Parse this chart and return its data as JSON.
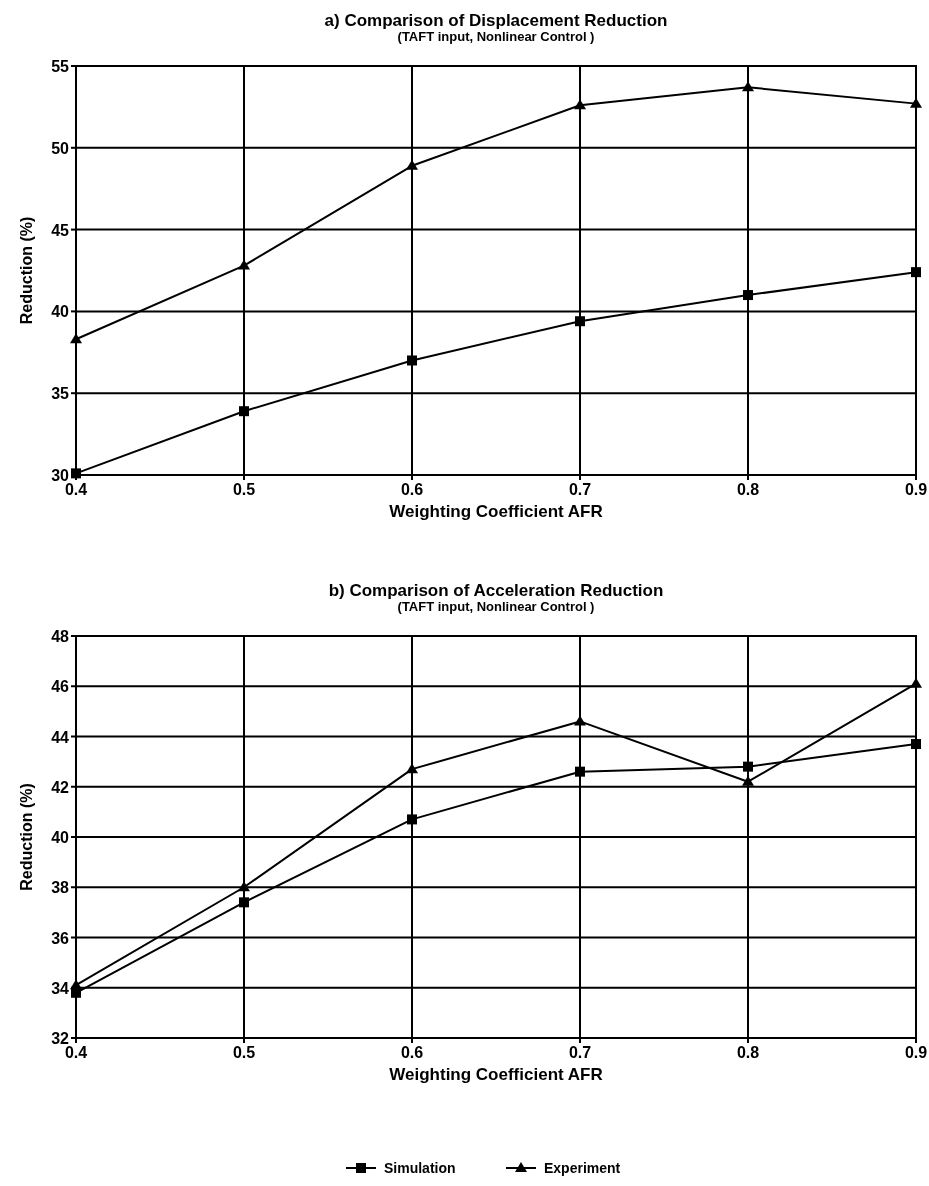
{
  "chart_data": [
    {
      "type": "line",
      "title": "a) Comparison of Displacement Reduction",
      "subtitle": "(TAFT input, Nonlinear Control   )",
      "xlabel": "Weighting Coefficient AFR",
      "ylabel": "Reduction (%)",
      "x": [
        0.4,
        0.5,
        0.6,
        0.7,
        0.8,
        0.9
      ],
      "xlim": [
        0.4,
        0.9
      ],
      "xticks": [
        0.4,
        0.5,
        0.6,
        0.7,
        0.8,
        0.9
      ],
      "ylim": [
        30,
        55
      ],
      "yticks": [
        30,
        35,
        40,
        45,
        50,
        55
      ],
      "grid": true,
      "series": [
        {
          "color": "#000000",
          "marker": "square",
          "values": [
            30.1,
            33.9,
            37.0,
            39.4,
            41.0,
            42.4
          ]
        },
        {
          "color": "#000000",
          "marker": "triangle",
          "values": [
            38.3,
            42.8,
            48.9,
            52.6,
            53.7,
            52.7
          ]
        }
      ]
    },
    {
      "type": "line",
      "title": "b) Comparison of Acceleration Reduction",
      "subtitle": "(TAFT input, Nonlinear Control   )",
      "xlabel": "Weighting Coefficient AFR",
      "ylabel": "Reduction (%)",
      "x": [
        0.4,
        0.5,
        0.6,
        0.7,
        0.8,
        0.9
      ],
      "xlim": [
        0.4,
        0.9
      ],
      "xticks": [
        0.4,
        0.5,
        0.6,
        0.7,
        0.8,
        0.9
      ],
      "ylim": [
        32,
        48
      ],
      "yticks": [
        32,
        34,
        36,
        38,
        40,
        42,
        44,
        46,
        48
      ],
      "grid": true,
      "legend": "bottom",
      "series": [
        {
          "name": "Simulation",
          "color": "#000000",
          "marker": "square",
          "values": [
            33.8,
            37.4,
            40.7,
            42.6,
            42.8,
            43.7
          ]
        },
        {
          "name": "Experiment",
          "color": "#000000",
          "marker": "triangle",
          "values": [
            34.1,
            38.0,
            42.7,
            44.6,
            42.2,
            46.1
          ]
        }
      ]
    }
  ]
}
